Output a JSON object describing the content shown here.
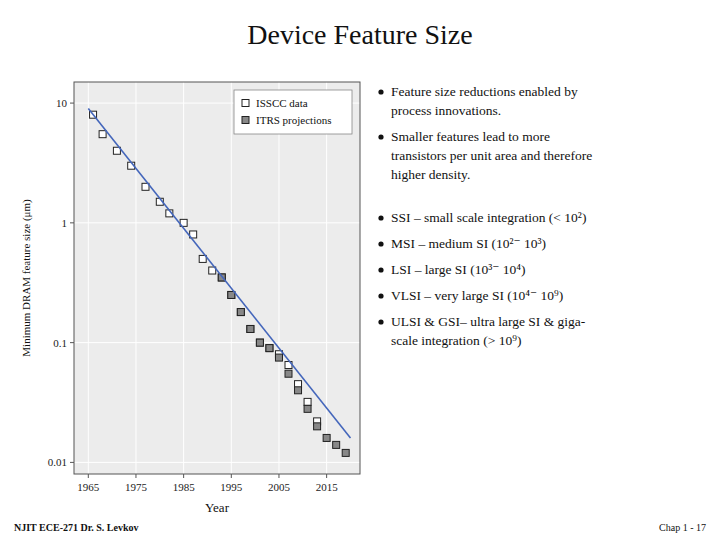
{
  "chart_data": {
    "type": "scatter",
    "title": "Device Feature Size",
    "x_label": "Year",
    "y_label": "Minimum DRAM feature size (μm)",
    "log": "y",
    "grid": true,
    "legend": "upper right",
    "xlim": [
      1962,
      2022
    ],
    "xticks": [
      1965,
      1975,
      1985,
      1995,
      2005,
      2015
    ],
    "ylim": [
      0.008,
      15
    ],
    "yticks": [
      0.01,
      0.1,
      1,
      10
    ],
    "series": [
      {
        "name": "ISSCC data",
        "type": "scatter",
        "marker": "square",
        "color": "#ffffff",
        "x": [
          1966,
          1968,
          1971,
          1974,
          1977,
          1980,
          1982,
          1985,
          1987,
          1989,
          1991,
          1993,
          1995,
          1997,
          1999,
          2001,
          2003,
          2005,
          2007,
          2009,
          2011,
          2013
        ],
        "values": [
          8.0,
          5.5,
          4.0,
          3.0,
          2.0,
          1.5,
          1.2,
          1.0,
          0.8,
          0.5,
          0.4,
          0.35,
          0.25,
          0.18,
          0.13,
          0.1,
          0.09,
          0.08,
          0.065,
          0.045,
          0.032,
          0.022
        ]
      },
      {
        "name": "ITRS projections",
        "type": "scatter",
        "marker": "square",
        "color": "#888888",
        "x": [
          1993,
          1995,
          1997,
          1999,
          2001,
          2003,
          2005,
          2007,
          2009,
          2011,
          2013,
          2015,
          2017,
          2019
        ],
        "values": [
          0.35,
          0.25,
          0.18,
          0.13,
          0.1,
          0.09,
          0.075,
          0.055,
          0.04,
          0.028,
          0.02,
          0.016,
          0.014,
          0.012
        ]
      },
      {
        "type": "line",
        "line_style": "solid",
        "color": "#4466bb",
        "x": [
          1965,
          2020
        ],
        "values": [
          9.0,
          0.016
        ]
      }
    ],
    "annotations": [
      [
        "Feature size reductions enabled by",
        "process innovations."
      ],
      [
        "Smaller features lead to more",
        "transistors per unit area and therefore",
        "higher density."
      ],
      [
        "SSI – small scale integration (< 10²)"
      ],
      [
        "MSI – medium SI (10²⁻ 10³)"
      ],
      [
        "LSI – large SI (10³⁻ 10⁴)"
      ],
      [
        "VLSI – very large SI (10⁴⁻ 10⁹)"
      ],
      [
        "ULSI & GSI– ultra large SI & giga-",
        "scale integration (> 10⁹)"
      ]
    ],
    "footer": [
      "NJIT  ECE-271  Dr. S. Levkov",
      "Chap 1 - 17"
    ]
  }
}
